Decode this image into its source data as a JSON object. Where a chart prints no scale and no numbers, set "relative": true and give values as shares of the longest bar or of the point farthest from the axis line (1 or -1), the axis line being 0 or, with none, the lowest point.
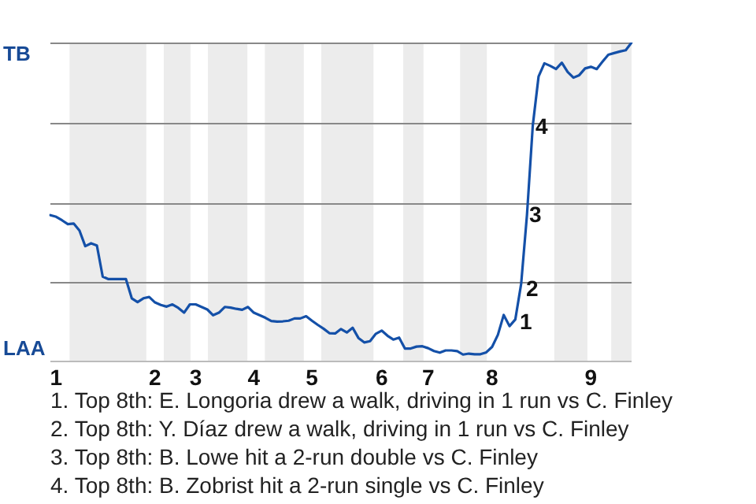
{
  "chart_data": {
    "type": "line",
    "relative": true,
    "categories": [
      null,
      "1",
      null,
      null,
      null,
      null,
      null,
      null,
      null,
      null,
      null,
      null,
      null,
      null,
      null,
      null,
      null,
      null,
      "2",
      null,
      null,
      null,
      null,
      null,
      null,
      "3",
      null,
      null,
      null,
      null,
      null,
      null,
      null,
      null,
      null,
      "4",
      null,
      null,
      null,
      null,
      null,
      null,
      null,
      null,
      null,
      "5",
      null,
      null,
      null,
      null,
      null,
      null,
      null,
      null,
      null,
      null,
      null,
      "6",
      null,
      null,
      null,
      null,
      null,
      null,
      null,
      "7",
      null,
      null,
      null,
      null,
      null,
      null,
      null,
      null,
      null,
      null,
      "8",
      null,
      null,
      null,
      null,
      null,
      null,
      null,
      null,
      null,
      null,
      null,
      null,
      null,
      null,
      null,
      null,
      "9",
      null,
      null,
      null,
      null,
      null,
      null,
      null
    ],
    "series": [
      {
        "color": "#1450a8",
        "values": [
          0.46,
          0.455,
          0.444,
          0.432,
          0.434,
          0.412,
          0.363,
          0.372,
          0.365,
          0.268,
          0.26,
          0.26,
          0.26,
          0.26,
          0.2,
          0.188,
          0.2,
          0.204,
          0.187,
          0.179,
          0.174,
          0.181,
          0.17,
          0.155,
          0.181,
          0.181,
          0.173,
          0.165,
          0.147,
          0.155,
          0.173,
          0.171,
          0.167,
          0.164,
          0.173,
          0.155,
          0.147,
          0.139,
          0.129,
          0.127,
          0.128,
          0.13,
          0.137,
          0.137,
          0.144,
          0.13,
          0.117,
          0.105,
          0.091,
          0.09,
          0.104,
          0.093,
          0.108,
          0.076,
          0.062,
          0.066,
          0.089,
          0.099,
          0.083,
          0.071,
          0.077,
          0.043,
          0.043,
          0.049,
          0.05,
          0.044,
          0.035,
          0.03,
          0.037,
          0.037,
          0.035,
          0.024,
          0.027,
          0.025,
          0.025,
          0.031,
          0.048,
          0.086,
          0.148,
          0.113,
          0.134,
          0.245,
          0.46,
          0.74,
          0.894,
          0.935,
          0.927,
          0.917,
          0.937,
          0.908,
          0.89,
          0.898,
          0.919,
          0.924,
          0.917,
          0.94,
          0.962,
          0.967,
          0.972,
          0.976,
          1
        ]
      }
    ],
    "grid": "y",
    "marker": "none",
    "annotations": [
      "TB",
      "LAA",
      "1",
      "2",
      "3",
      "4",
      "1. Top 8th: E. Longoria drew a walk, driving in 1 run vs C. Finley",
      "2. Top 8th: Y. Díaz drew a walk, driving in 1 run vs C. Finley",
      "3. Top 8th: B. Lowe hit a 2-run double vs C. Finley",
      "4. Top 8th: B. Zobrist hit a 2-run single vs C. Finley"
    ]
  }
}
